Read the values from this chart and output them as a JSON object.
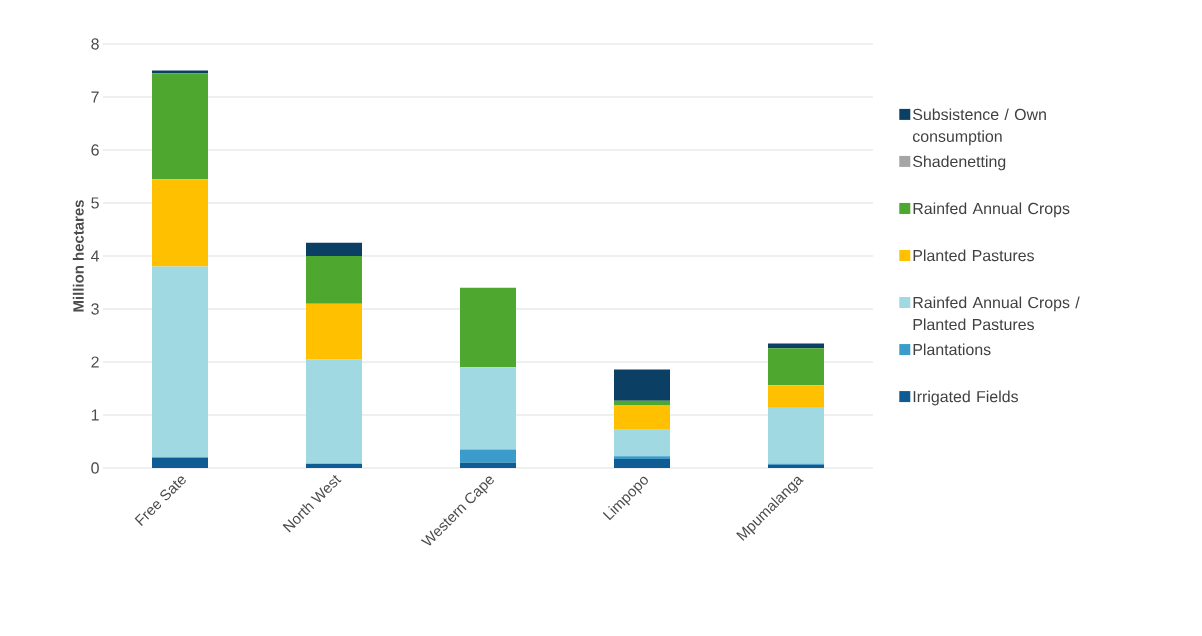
{
  "chart_data": {
    "type": "bar",
    "stacked": true,
    "ylabel": "Million hectares",
    "categories": [
      "Free Sate",
      "North West",
      "Western Cape",
      "Limpopo",
      "Mpumalanga"
    ],
    "series": [
      {
        "name": "Irrigated Fields",
        "color": "#0f5c94",
        "values": [
          0.2,
          0.08,
          0.1,
          0.17,
          0.06
        ]
      },
      {
        "name": "Plantations",
        "color": "#3b9ccb",
        "values": [
          0,
          0,
          0.25,
          0.05,
          0.02
        ]
      },
      {
        "name": "Rainfed Annual Crops / Planted Pastures",
        "color": "#a1d9e2",
        "values": [
          3.6,
          1.97,
          1.55,
          0.5,
          1.07
        ]
      },
      {
        "name": "Planted Pastures",
        "color": "#ffc000",
        "values": [
          1.65,
          1.05,
          0,
          0.47,
          0.41
        ]
      },
      {
        "name": "Rainfed Annual Crops",
        "color": "#4ea72e",
        "values": [
          2.0,
          0.9,
          1.5,
          0.08,
          0.7
        ]
      },
      {
        "name": "Shadenetting",
        "color": "#a5a5a5",
        "values": [
          0,
          0,
          0,
          0,
          0
        ]
      },
      {
        "name": "Subsistence / Own consumption",
        "color": "#0b3f63",
        "values": [
          0.05,
          0.25,
          0,
          0.59,
          0.09
        ]
      }
    ],
    "ylim": [
      0,
      8
    ],
    "yticks": [
      0,
      1,
      2,
      3,
      4,
      5,
      6,
      7,
      8
    ],
    "grid": "y",
    "legend": "right"
  }
}
